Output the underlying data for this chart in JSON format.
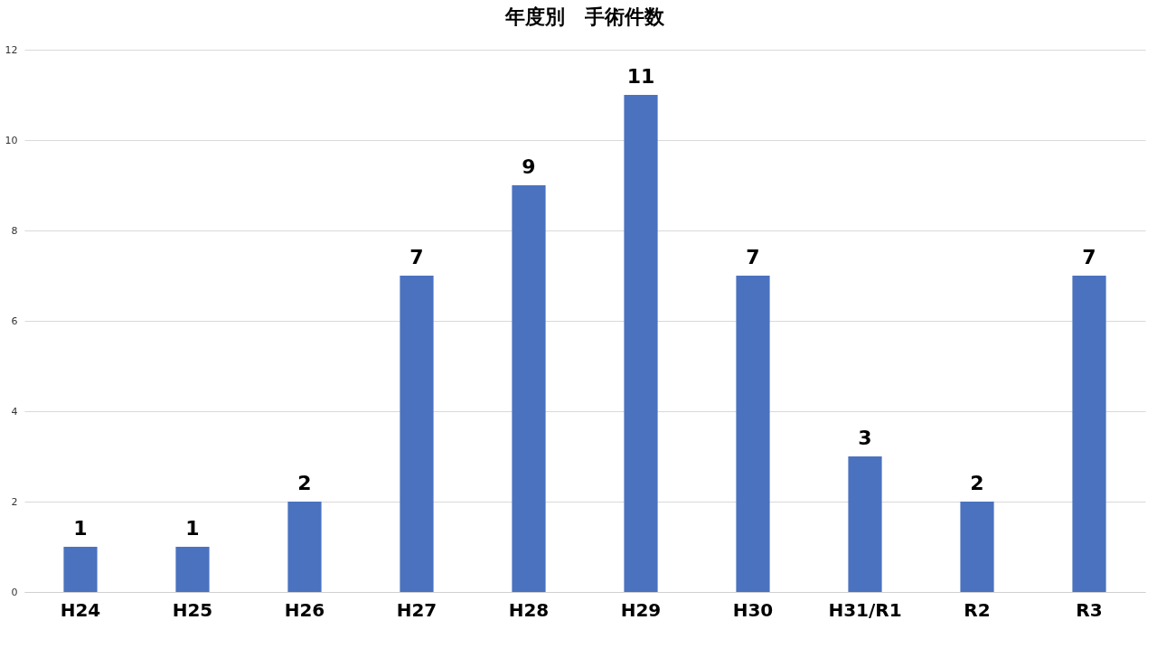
{
  "chart_data": {
    "type": "bar",
    "title": "年度別　手術件数",
    "categories": [
      "H24",
      "H25",
      "H26",
      "H27",
      "H28",
      "H29",
      "H30",
      "H31/R1",
      "R2",
      "R3"
    ],
    "values": [
      1,
      1,
      2,
      7,
      9,
      11,
      7,
      3,
      2,
      7
    ],
    "color": "#4a72bf",
    "ylim": [
      0,
      12
    ],
    "yticks": [
      0,
      2,
      4,
      6,
      8,
      10,
      12
    ],
    "grid": "y",
    "data_labels": true
  }
}
